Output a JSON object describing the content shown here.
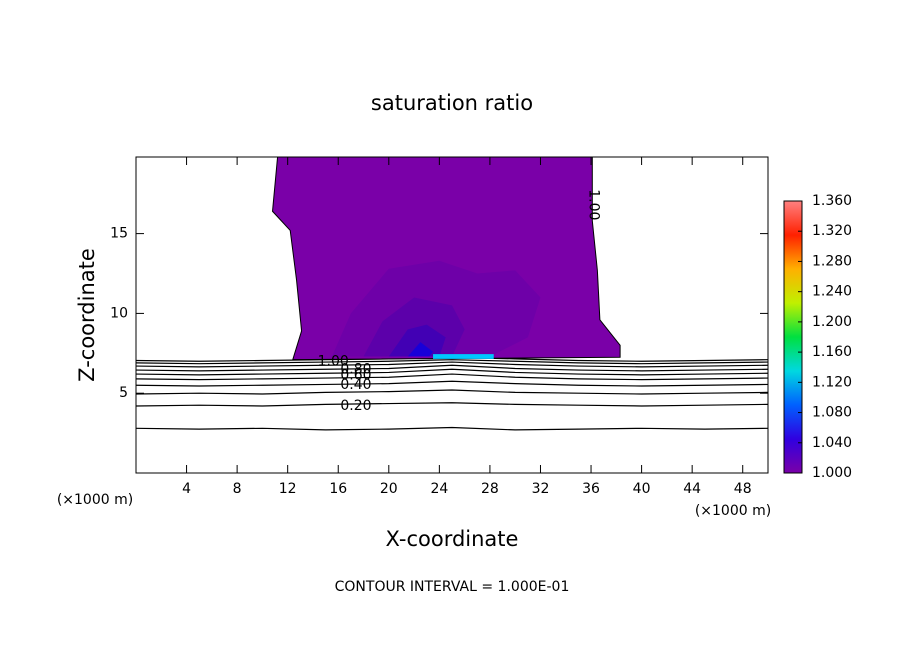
{
  "chart_data": {
    "type": "contour",
    "title": "saturation ratio",
    "xlabel": "X-coordinate",
    "ylabel": "Z-coordinate",
    "x_unit": "(×1000 m)",
    "footer": "CONTOUR INTERVAL = 1.000E-01",
    "xlim": [
      0,
      50
    ],
    "ylim": [
      0,
      19.8
    ],
    "xticks": [
      4,
      8,
      12,
      16,
      20,
      24,
      28,
      32,
      36,
      40,
      44,
      48
    ],
    "yticks": [
      5,
      10,
      15
    ],
    "line_color": "#000000",
    "contour_x": [
      0,
      5,
      10,
      15,
      20,
      25,
      30,
      35,
      40,
      45,
      50
    ],
    "contour_lines": [
      {
        "level": 0.1,
        "z": [
          2.8,
          2.75,
          2.8,
          2.7,
          2.75,
          2.85,
          2.7,
          2.75,
          2.8,
          2.75,
          2.8
        ]
      },
      {
        "level": 0.2,
        "z": [
          4.2,
          4.25,
          4.2,
          4.3,
          4.35,
          4.4,
          4.3,
          4.25,
          4.2,
          4.25,
          4.3
        ]
      },
      {
        "level": 0.3,
        "z": [
          4.95,
          5.0,
          4.95,
          5.05,
          5.1,
          5.2,
          5.05,
          5.0,
          4.95,
          5.0,
          5.05
        ]
      },
      {
        "level": 0.4,
        "z": [
          5.5,
          5.45,
          5.5,
          5.55,
          5.6,
          5.75,
          5.6,
          5.5,
          5.45,
          5.5,
          5.55
        ]
      },
      {
        "level": 0.5,
        "z": [
          5.9,
          5.85,
          5.9,
          5.95,
          6.0,
          6.2,
          6.0,
          5.9,
          5.85,
          5.9,
          5.95
        ]
      },
      {
        "level": 0.6,
        "z": [
          6.2,
          6.15,
          6.2,
          6.25,
          6.3,
          6.5,
          6.3,
          6.2,
          6.15,
          6.2,
          6.25
        ]
      },
      {
        "level": 0.7,
        "z": [
          6.45,
          6.4,
          6.45,
          6.5,
          6.55,
          6.75,
          6.55,
          6.45,
          6.4,
          6.45,
          6.5
        ]
      },
      {
        "level": 0.8,
        "z": [
          6.7,
          6.65,
          6.7,
          6.75,
          6.8,
          6.95,
          6.8,
          6.7,
          6.65,
          6.7,
          6.75
        ]
      },
      {
        "level": 0.9,
        "z": [
          6.9,
          6.85,
          6.9,
          6.95,
          7.0,
          7.1,
          7.0,
          6.9,
          6.85,
          6.9,
          6.95
        ]
      },
      {
        "level": 1.0,
        "z": [
          7.05,
          7.0,
          7.05,
          7.1,
          7.15,
          7.25,
          7.15,
          7.05,
          7.0,
          7.05,
          7.1
        ]
      }
    ],
    "contour_labels": [
      {
        "text": "1.00",
        "x": 15.6,
        "z": 7.0
      },
      {
        "text": "0.80",
        "x": 17.4,
        "z": 6.5
      },
      {
        "text": "0.60",
        "x": 17.4,
        "z": 6.1
      },
      {
        "text": "0.40",
        "x": 17.4,
        "z": 5.5
      },
      {
        "text": "0.20",
        "x": 17.4,
        "z": 4.2
      },
      {
        "text": "1.00",
        "x": 36.2,
        "z": 16.8,
        "rotate": 90
      }
    ],
    "filled": [
      {
        "level": 1.0,
        "color": "#7a00a8",
        "polygon": [
          [
            11.2,
            19.8
          ],
          [
            10.8,
            16.4
          ],
          [
            12.2,
            15.2
          ],
          [
            12.7,
            12.1
          ],
          [
            13.1,
            8.9
          ],
          [
            12.4,
            7.1
          ],
          [
            38.3,
            7.25
          ],
          [
            38.3,
            8
          ],
          [
            36.7,
            9.6
          ],
          [
            36.5,
            12.7
          ],
          [
            36.1,
            15.8
          ],
          [
            36.1,
            19.8
          ]
        ]
      },
      {
        "level": 1.005,
        "color": "#6e00a8",
        "polygon": [
          [
            15.5,
            7.3
          ],
          [
            17,
            10
          ],
          [
            20,
            12.8
          ],
          [
            24,
            13.3
          ],
          [
            27,
            12.5
          ],
          [
            30,
            12.7
          ],
          [
            32,
            11
          ],
          [
            31,
            8.5
          ],
          [
            28,
            7.3
          ]
        ]
      },
      {
        "level": 1.01,
        "color": "#5c00aa",
        "polygon": [
          [
            18,
            7.3
          ],
          [
            19.5,
            9.5
          ],
          [
            22,
            11
          ],
          [
            25,
            10.5
          ],
          [
            26,
            9
          ],
          [
            25,
            7.3
          ]
        ]
      },
      {
        "level": 1.02,
        "color": "#4200b4",
        "polygon": [
          [
            20,
            7.3
          ],
          [
            21.5,
            9
          ],
          [
            23,
            9.3
          ],
          [
            24.5,
            8.5
          ],
          [
            24,
            7.3
          ]
        ]
      },
      {
        "level": 1.04,
        "color": "#1800d8",
        "polygon": [
          [
            21.5,
            7.3
          ],
          [
            22.5,
            8.2
          ],
          [
            23.5,
            7.6
          ],
          [
            23.2,
            7.3
          ]
        ]
      },
      {
        "level": 1.1,
        "color": "#00c8ff",
        "polygon": [
          [
            23.5,
            7.15
          ],
          [
            28.3,
            7.15
          ],
          [
            28.3,
            7.45
          ],
          [
            23.5,
            7.45
          ]
        ]
      }
    ],
    "colorbar": {
      "lim": [
        1.0,
        1.36
      ],
      "colors": [
        "#7a00a8",
        "#3000e0",
        "#0060ff",
        "#00d8e0",
        "#00e040",
        "#c0f000",
        "#ffb000",
        "#ff2000",
        "#ff8080"
      ],
      "ticks": [
        {
          "value": 1.0,
          "label": "1.000"
        },
        {
          "value": 1.04,
          "label": "1.040"
        },
        {
          "value": 1.08,
          "label": "1.080"
        },
        {
          "value": 1.12,
          "label": "1.120"
        },
        {
          "value": 1.16,
          "label": "1.160"
        },
        {
          "value": 1.2,
          "label": "1.200"
        },
        {
          "value": 1.24,
          "label": "1.240"
        },
        {
          "value": 1.28,
          "label": "1.280"
        },
        {
          "value": 1.32,
          "label": "1.320"
        },
        {
          "value": 1.36,
          "label": "1.360"
        }
      ]
    }
  }
}
